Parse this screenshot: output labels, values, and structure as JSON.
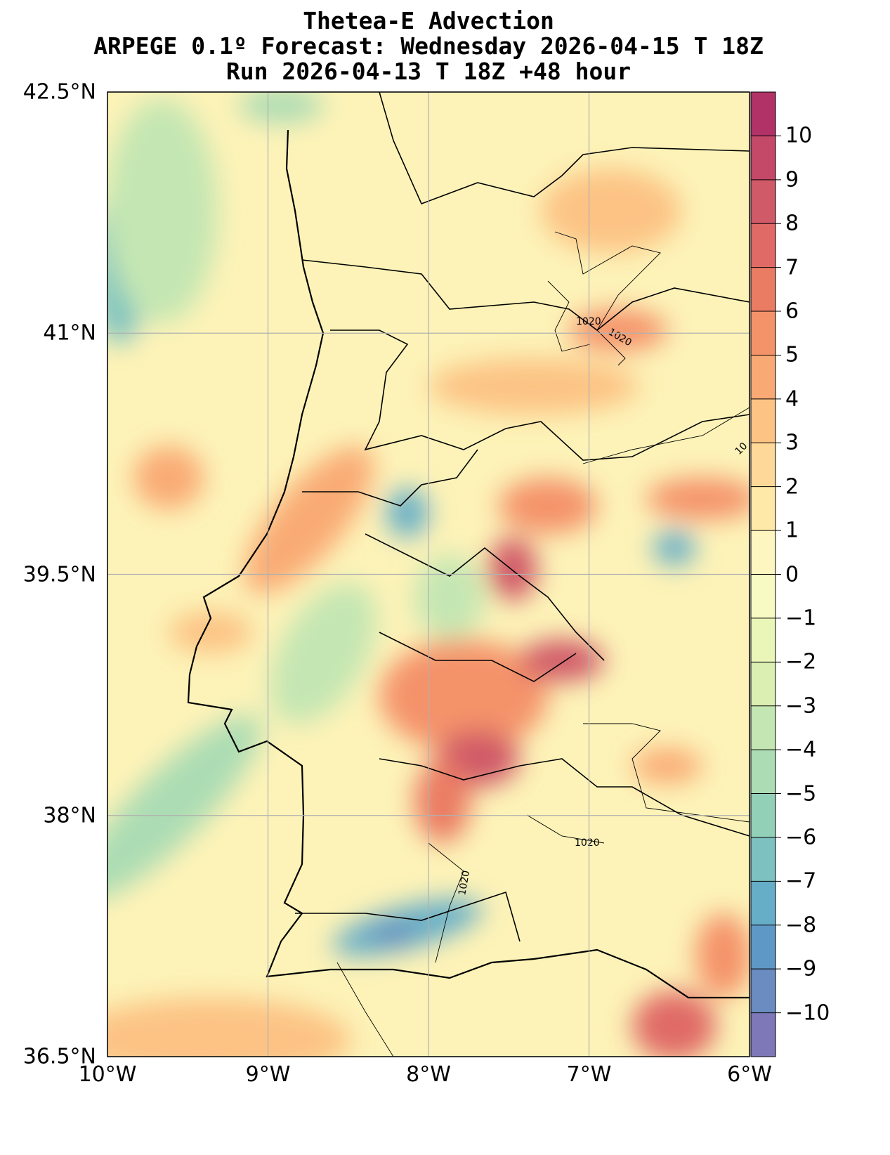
{
  "title": {
    "line1": "Thetea-E Advection",
    "line2": "ARPEGE 0.1º Forecast: Wednesday 2026-04-15 T 18Z",
    "line3": "Run 2026-04-13 T 18Z +48 hour"
  },
  "map": {
    "lat_ticks": [
      "42.5°N",
      "41°N",
      "39.5°N",
      "38°N",
      "36.5°N"
    ],
    "lon_ticks": [
      "10°W",
      "9°W",
      "8°W",
      "7°W",
      "6°W"
    ],
    "lat_range": [
      36.5,
      42.5
    ],
    "lon_range": [
      -10,
      -6
    ],
    "isobar_labels": [
      "1020",
      "1020",
      "1020",
      "1020",
      "10"
    ]
  },
  "colorbar": {
    "levels_min": -11,
    "levels_max": 11,
    "ticks": [
      "10",
      "9",
      "8",
      "7",
      "6",
      "5",
      "4",
      "3",
      "2",
      "1",
      "0",
      "−1",
      "−2",
      "−3",
      "−4",
      "−5",
      "−6",
      "−7",
      "−8",
      "−9",
      "−10"
    ],
    "colors": [
      "#7f78b8",
      "#6a8cc0",
      "#5e98c6",
      "#66aec8",
      "#7dc2c0",
      "#92d0b8",
      "#acdcb4",
      "#c4e6b2",
      "#dbefb2",
      "#eaf5b8",
      "#f8fac4",
      "#fef6c0",
      "#fee9a8",
      "#fdd898",
      "#fcc384",
      "#f9aa74",
      "#f4936a",
      "#ea7c64",
      "#e06a66",
      "#d05a68",
      "#c44868",
      "#b03266"
    ]
  }
}
